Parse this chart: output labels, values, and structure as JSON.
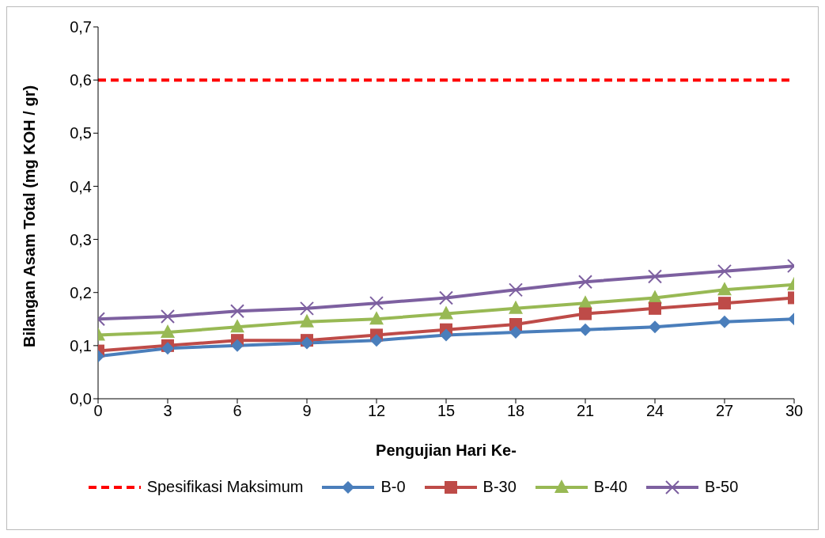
{
  "chart_data": {
    "type": "line",
    "xlabel": "Pengujian Hari Ke-",
    "ylabel": "Bilangan Asam Total (mg KOH / gr)",
    "x": [
      0,
      3,
      6,
      9,
      12,
      15,
      18,
      21,
      24,
      27,
      30
    ],
    "series": [
      {
        "name": "B-0",
        "color": "#4a7ebb",
        "marker": "diamond",
        "values": [
          0.08,
          0.095,
          0.1,
          0.105,
          0.11,
          0.12,
          0.125,
          0.13,
          0.135,
          0.145,
          0.15
        ]
      },
      {
        "name": "B-30",
        "color": "#be4b48",
        "marker": "square",
        "values": [
          0.09,
          0.1,
          0.11,
          0.11,
          0.12,
          0.13,
          0.14,
          0.16,
          0.17,
          0.18,
          0.19
        ]
      },
      {
        "name": "B-40",
        "color": "#98b954",
        "marker": "triangle",
        "values": [
          0.12,
          0.125,
          0.135,
          0.145,
          0.15,
          0.16,
          0.17,
          0.18,
          0.19,
          0.205,
          0.215
        ]
      },
      {
        "name": "B-50",
        "color": "#7d60a0",
        "marker": "cross",
        "values": [
          0.15,
          0.155,
          0.165,
          0.17,
          0.18,
          0.19,
          0.205,
          0.22,
          0.23,
          0.24,
          0.25
        ]
      }
    ],
    "ref_lines": [
      {
        "axis": "y",
        "value": 0.6,
        "label": "Spesifikasi Maksimum",
        "color": "#ff0000",
        "line_style": "dashed"
      }
    ],
    "xlim": [
      0,
      30
    ],
    "xticks": [
      0,
      3,
      6,
      9,
      12,
      15,
      18,
      21,
      24,
      27,
      30
    ],
    "ylim": [
      0,
      0.7
    ],
    "yticks": [
      {
        "value": 0,
        "label": "0,0"
      },
      {
        "value": 0.1,
        "label": "0,1"
      },
      {
        "value": 0.2,
        "label": "0,2"
      },
      {
        "value": 0.3,
        "label": "0,3"
      },
      {
        "value": 0.4,
        "label": "0,4"
      },
      {
        "value": 0.5,
        "label": "0,5"
      },
      {
        "value": 0.6,
        "label": "0,6"
      },
      {
        "value": 0.7,
        "label": "0,7"
      }
    ],
    "grid": false,
    "legend": "bottom",
    "line_style": "solid"
  }
}
